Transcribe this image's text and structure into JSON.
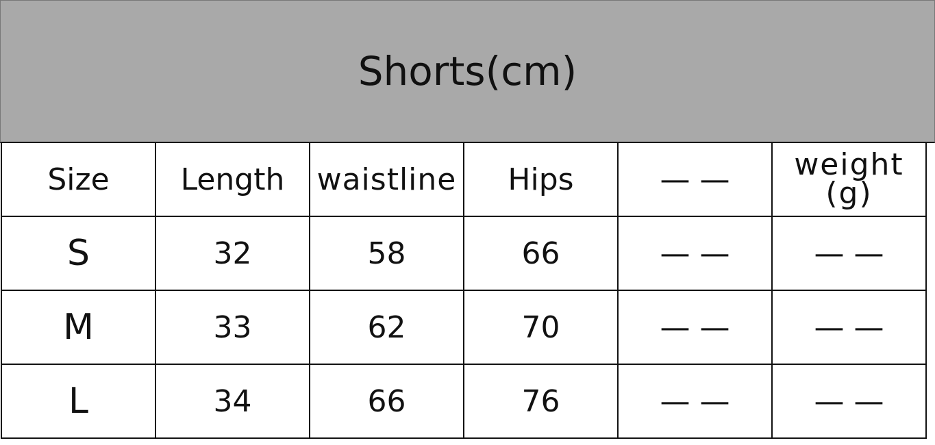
{
  "title": "Shorts(cm)",
  "headers": [
    "Size",
    "Length",
    "waistline",
    "Hips",
    "— —",
    "weight",
    "(g)"
  ],
  "rows": [
    {
      "size": "S",
      "length": "32",
      "waistline": "58",
      "hips": "66",
      "blank": "— —",
      "weight": "— —"
    },
    {
      "size": "M",
      "length": "33",
      "waistline": "62",
      "hips": "70",
      "blank": "— —",
      "weight": "— —"
    },
    {
      "size": "L",
      "length": "34",
      "waistline": "66",
      "hips": "76",
      "blank": "— —",
      "weight": "— —"
    }
  ],
  "colors": {
    "title_band": "#a9a9a9",
    "border": "#111111"
  }
}
